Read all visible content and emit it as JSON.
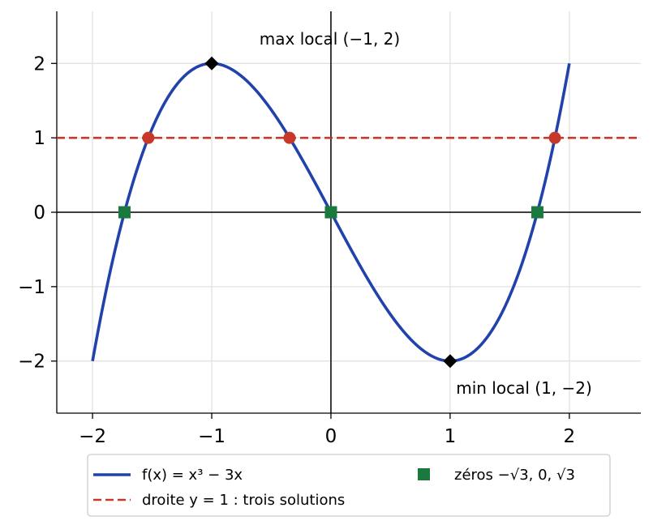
{
  "chart_data": {
    "type": "line",
    "xlim": [
      -2.3,
      2.6
    ],
    "ylim": [
      -2.7,
      2.7
    ],
    "grid": true,
    "x_ticks": [
      -2,
      -1,
      0,
      1,
      2
    ],
    "y_ticks": [
      -2,
      -1,
      0,
      1,
      2
    ],
    "x_tick_labels": [
      "−2",
      "−1",
      "0",
      "1",
      "2"
    ],
    "y_tick_labels": [
      "−2",
      "−1",
      "0",
      "1",
      "2"
    ],
    "function": {
      "name": "f(x) = x³ − 3x",
      "x_range": [
        -2,
        2
      ],
      "color": "#2142ab"
    },
    "horizontal_line": {
      "name": "droite y = 1 : trois solutions",
      "y": 1,
      "color": "#c8382a"
    },
    "intersection_points": {
      "x": [
        -1.532,
        -0.347,
        1.879
      ],
      "y": [
        1,
        1,
        1
      ],
      "color": "#c8382a"
    },
    "zeros": {
      "name": "zéros −√3, 0, √3",
      "x": [
        -1.732,
        0,
        1.732
      ],
      "y": [
        0,
        0,
        0
      ],
      "color": "#1a7a3e"
    },
    "extrema": {
      "x": [
        -1,
        1
      ],
      "y": [
        2,
        -2
      ],
      "color": "#000000"
    },
    "annotations": [
      {
        "text": "max local (−1, 2)",
        "x": -0.6,
        "y": 2.33
      },
      {
        "text": "min local (1, −2)",
        "x": 1.05,
        "y": -2.36
      }
    ],
    "legend": {
      "placement": "bottom"
    }
  }
}
